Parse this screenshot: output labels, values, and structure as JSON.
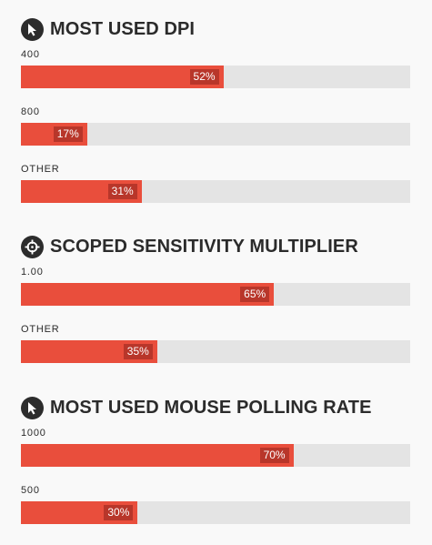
{
  "sections": [
    {
      "title": "MOST USED DPI",
      "icon": "cursor-icon",
      "bars": [
        {
          "label": "400",
          "value": 52,
          "text": "52%"
        },
        {
          "label": "800",
          "value": 17,
          "text": "17%"
        },
        {
          "label": "OTHER",
          "value": 31,
          "text": "31%"
        }
      ]
    },
    {
      "title": "SCOPED SENSITIVITY MULTIPLIER",
      "icon": "crosshair-icon",
      "bars": [
        {
          "label": "1.00",
          "value": 65,
          "text": "65%"
        },
        {
          "label": "OTHER",
          "value": 35,
          "text": "35%"
        }
      ]
    },
    {
      "title": "MOST USED MOUSE POLLING RATE",
      "icon": "cursor-icon",
      "bars": [
        {
          "label": "1000",
          "value": 70,
          "text": "70%"
        },
        {
          "label": "500",
          "value": 30,
          "text": "30%"
        }
      ]
    }
  ],
  "colors": {
    "fill": "#e94e3c",
    "badge": "#b8362a",
    "track": "#e4e4e4",
    "icon_bg": "#2c2c2c",
    "text": "#2b2b2b"
  },
  "chart_data": [
    {
      "type": "bar",
      "title": "MOST USED DPI",
      "categories": [
        "400",
        "800",
        "OTHER"
      ],
      "values": [
        52,
        17,
        31
      ],
      "unit": "%",
      "xlim": [
        0,
        100
      ]
    },
    {
      "type": "bar",
      "title": "SCOPED SENSITIVITY MULTIPLIER",
      "categories": [
        "1.00",
        "OTHER"
      ],
      "values": [
        65,
        35
      ],
      "unit": "%",
      "xlim": [
        0,
        100
      ]
    },
    {
      "type": "bar",
      "title": "MOST USED MOUSE POLLING RATE",
      "categories": [
        "1000",
        "500"
      ],
      "values": [
        70,
        30
      ],
      "unit": "%",
      "xlim": [
        0,
        100
      ]
    }
  ]
}
